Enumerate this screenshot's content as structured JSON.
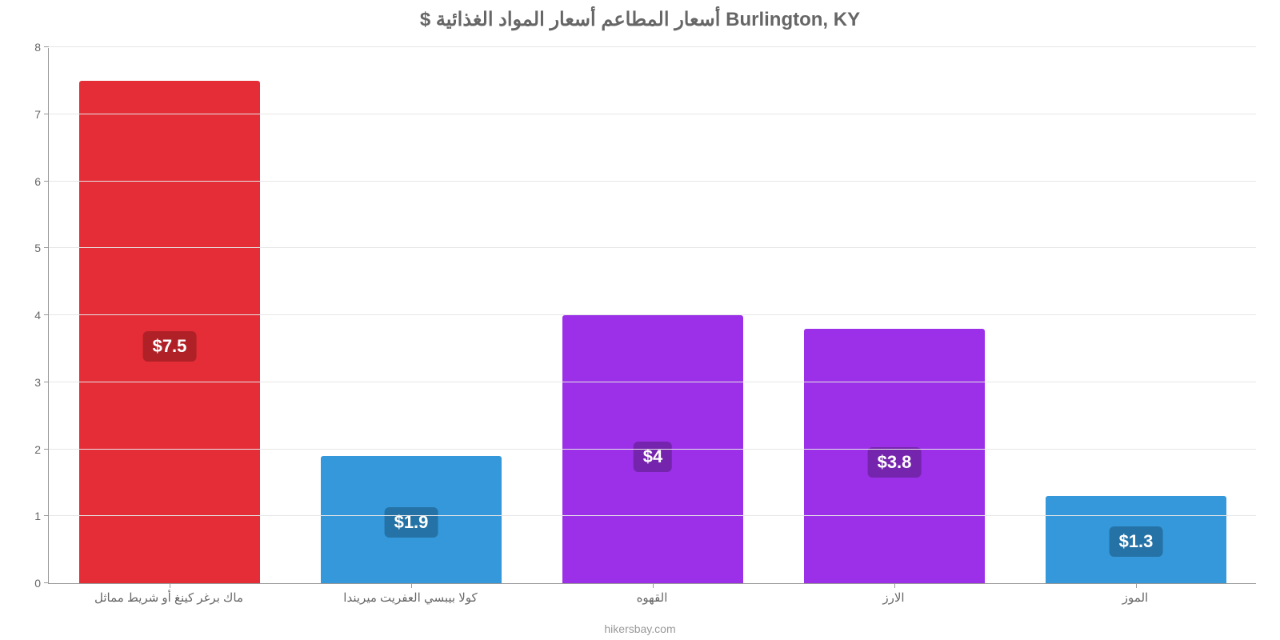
{
  "chart": {
    "type": "bar",
    "title": "$ أسعار المطاعم أسعار المواد الغذائية Burlington, KY",
    "title_fontsize": 24,
    "title_color": "#666666",
    "footer": "hikersbay.com",
    "footer_color": "#999999",
    "background_color": "#ffffff",
    "grid_color": "#e6e6e6",
    "axis_color": "#999999",
    "tick_label_color": "#666666",
    "tick_label_fontsize": 14,
    "x_label_fontsize": 15,
    "ylim": [
      0,
      8
    ],
    "ytick_step": 1,
    "yticks": [
      0,
      1,
      2,
      3,
      4,
      5,
      6,
      7,
      8
    ],
    "bar_width_ratio": 0.75,
    "value_label_fontsize": 22,
    "data": [
      {
        "category": "ماك برغر كينغ أو شريط مماثل",
        "value": 7.5,
        "label": "$7.5",
        "bar_color": "#e52d38",
        "badge_bg": "#b02127"
      },
      {
        "category": "كولا بيبسي العفريت ميريندا",
        "value": 1.9,
        "label": "$1.9",
        "bar_color": "#3498db",
        "badge_bg": "#2573a6"
      },
      {
        "category": "القهوه",
        "value": 4.0,
        "label": "$4",
        "bar_color": "#9b30e8",
        "badge_bg": "#7524ad"
      },
      {
        "category": "الارز",
        "value": 3.8,
        "label": "$3.8",
        "bar_color": "#9b30e8",
        "badge_bg": "#7524ad"
      },
      {
        "category": "الموز",
        "value": 1.3,
        "label": "$1.3",
        "bar_color": "#3498db",
        "badge_bg": "#2573a6"
      }
    ]
  }
}
